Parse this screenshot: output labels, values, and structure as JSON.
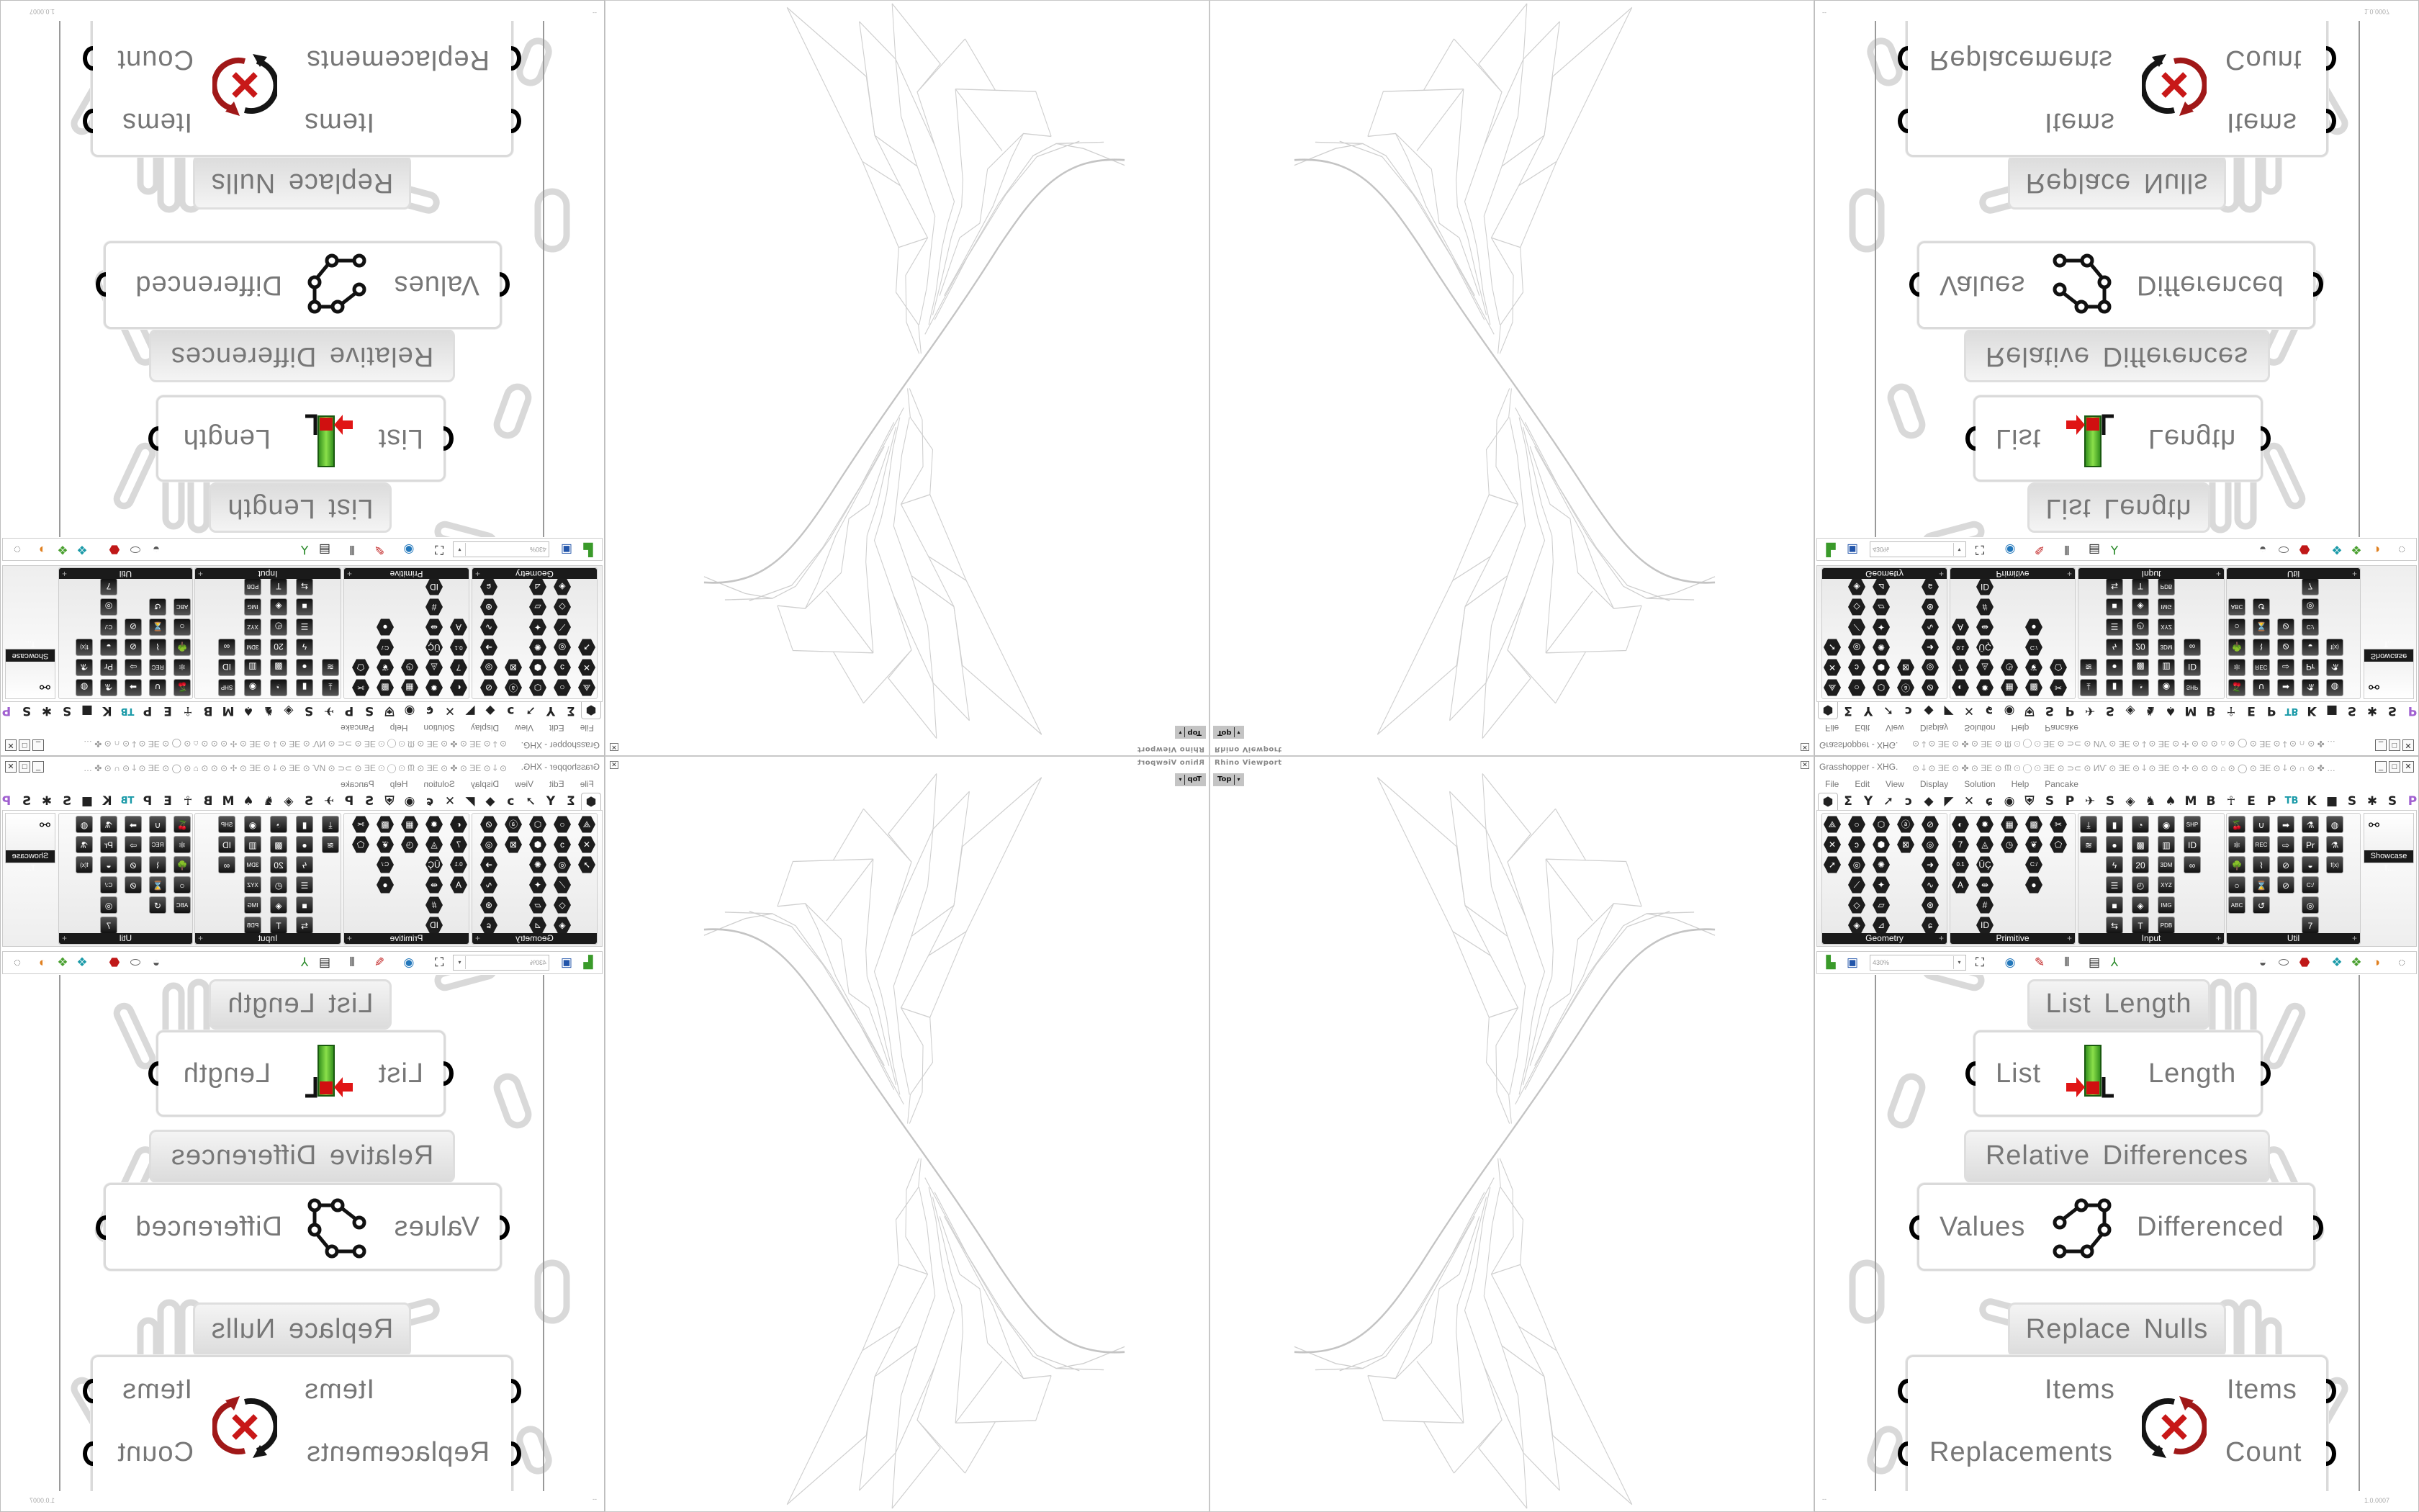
{
  "grasshopper": {
    "title": "Grasshopper - XHG.",
    "title_glyphs": "⊙ ⸸ ⊙ ƎE ⊙ ✤ ⊙ ƎE ⊙ ᙏ ⊙ ◯ ⊙ ƎE ⊙ ⊃⊂ ⊙ ИѴ ⊙ ƎE ⊙ ⸸ ⊙ ƎE ⊙ ✢ ⊙ ⊙ ⊙ ⌂ ⊙ ◯ ⊙ ƎE ⊙ ⸸ ⊙ ∩ ⊙ ✤ …",
    "window_buttons": {
      "minimize": "_",
      "maximize": "□",
      "close": "✕"
    },
    "menu": [
      "File",
      "Edit",
      "View",
      "Display",
      "Solution",
      "Help",
      "Pancake"
    ],
    "tabs": [
      {
        "icon": "params-hexagon",
        "glyph": "⬢"
      },
      {
        "label": "Σ"
      },
      {
        "label": "Y"
      },
      {
        "icon": "vector-arrow",
        "glyph": "➚"
      },
      {
        "icon": "curve",
        "glyph": "ↄ"
      },
      {
        "icon": "surface",
        "glyph": "◆"
      },
      {
        "icon": "mesh",
        "glyph": "◤"
      },
      {
        "icon": "intersect",
        "glyph": "✕"
      },
      {
        "icon": "transform",
        "glyph": "ɕ"
      },
      {
        "icon": "display-eye",
        "glyph": "◉"
      },
      {
        "icon": "shield-plugin",
        "glyph": "⛨"
      },
      {
        "label": "S"
      },
      {
        "label": "P"
      },
      {
        "icon": "mosquito",
        "glyph": "✈"
      },
      {
        "label": "S"
      },
      {
        "icon": "teal-plugin",
        "glyph": "◈"
      },
      {
        "icon": "horse",
        "glyph": "♞"
      },
      {
        "icon": "rooster",
        "glyph": "♠"
      },
      {
        "label": "M"
      },
      {
        "label": "B"
      },
      {
        "icon": "figure",
        "glyph": "☥"
      },
      {
        "label": "E"
      },
      {
        "label": "P"
      },
      {
        "label": "TB"
      },
      {
        "label": "K"
      },
      {
        "icon": "blue-box",
        "glyph": "■"
      },
      {
        "label": "S"
      },
      {
        "icon": "grasshopper-green",
        "glyph": "✱"
      },
      {
        "label": "S"
      },
      {
        "icon": "purple-plugin",
        "glyph": "P"
      }
    ],
    "panels": [
      {
        "label": "Geometry",
        "style": "hex",
        "columns": [
          [
            "⟁",
            "✕",
            "➚"
          ],
          [
            "○",
            "ↄ",
            "◎",
            "⟋",
            "◇",
            "◈"
          ],
          [
            "⬡",
            "⬢",
            "✺",
            "✦",
            "▱",
            "⊿"
          ],
          [
            "ⓐ",
            "⊠"
          ],
          [
            "⊘",
            "◎",
            "➜",
            "∿",
            "⊛",
            "ɕ"
          ]
        ]
      },
      {
        "label": "Primitive",
        "style": "hex",
        "columns": [
          [
            "◐",
            "7",
            "0.1",
            "A"
          ],
          [
            "✹",
            "◬",
            "ŬÇ",
            "⇹",
            "#",
            "ID"
          ],
          [
            "▦",
            "◷"
          ],
          [
            "▩",
            "❦",
            "C:/",
            "●"
          ],
          [
            "✂",
            "⬠"
          ]
        ]
      },
      {
        "label": "Input",
        "style": "sq",
        "columns": [
          [
            "⤓",
            "≋"
          ],
          [
            "▮",
            "●",
            "ϟ",
            "☰",
            "■",
            "⇆"
          ],
          [
            "◔",
            "▩",
            "20",
            "◴",
            "◈",
            "T"
          ],
          [
            "◉",
            "▥",
            "3DM",
            "XYZ",
            "IMG",
            "PDB"
          ],
          [
            "SHP",
            "ID",
            "∞"
          ]
        ]
      },
      {
        "label": "Util",
        "style": "sq",
        "columns": [
          [
            "🍒",
            "⚛",
            "🌳",
            "○",
            "ABC"
          ],
          [
            "∪",
            "REC",
            "⌇",
            "⌛",
            "↺"
          ],
          [
            "➡",
            "⇨",
            "⊘",
            "⊘"
          ],
          [
            "⚗",
            "Pr",
            "◒",
            "C:/",
            "◎",
            "7"
          ],
          [
            "◍",
            "⚗",
            "f(x)"
          ]
        ]
      }
    ],
    "showcase_label": "Showcase T...",
    "toolbar": {
      "zoom_value": "430%",
      "dropdown": "▾"
    },
    "toolbar_icons": [
      {
        "name": "open-file-icon",
        "glyph": "▙",
        "color": "#3a9a2a"
      },
      {
        "name": "save-file-icon",
        "glyph": "▣",
        "color": "#2255aa"
      },
      {
        "name": "zoom-extents-icon",
        "glyph": "⛶",
        "color": "#111"
      },
      {
        "name": "preview-eye-icon",
        "glyph": "◉",
        "color": "#2277bb"
      },
      {
        "name": "sketch-pen-icon",
        "glyph": "✎",
        "color": "#c02020"
      },
      {
        "name": "bake-icon",
        "glyph": "⫴",
        "color": "#222"
      },
      {
        "name": "remote-icon",
        "glyph": "▤",
        "color": "#222"
      },
      {
        "name": "axes-icon",
        "glyph": "⅄",
        "color": "#2a8a2a"
      },
      {
        "name": "preview-wire-icon",
        "glyph": "◒",
        "color": "#555"
      },
      {
        "name": "preview-shaded-icon",
        "glyph": "⬭",
        "color": "#666"
      },
      {
        "name": "preview-selected-icon",
        "glyph": "⬣",
        "color": "#c01818"
      },
      {
        "name": "document-preview-icon",
        "glyph": "❖",
        "color": "#1a9aa8"
      },
      {
        "name": "material-icon",
        "glyph": "❖",
        "color": "#4aa030"
      },
      {
        "name": "shading-sphere-icon",
        "glyph": "◑",
        "color": "#e08020"
      },
      {
        "name": "selection-icon",
        "glyph": "◌",
        "color": "#666"
      }
    ],
    "components": {
      "list_length": {
        "label": "List Length",
        "input": "List",
        "output": "Length"
      },
      "relative_differences": {
        "label": "Relative Differences",
        "input": "Values",
        "output": "Differenced"
      },
      "replace_nulls": {
        "label": "Replace Nulls",
        "inputs": [
          "Items",
          "Replacements"
        ],
        "outputs": [
          "Items",
          "Count"
        ]
      }
    },
    "status": {
      "left": "--",
      "version": "1.0.0007"
    }
  },
  "rhino": {
    "title": "Rhino Viewport",
    "view": "Top",
    "view_dropdown": "▾",
    "close": "✕"
  }
}
